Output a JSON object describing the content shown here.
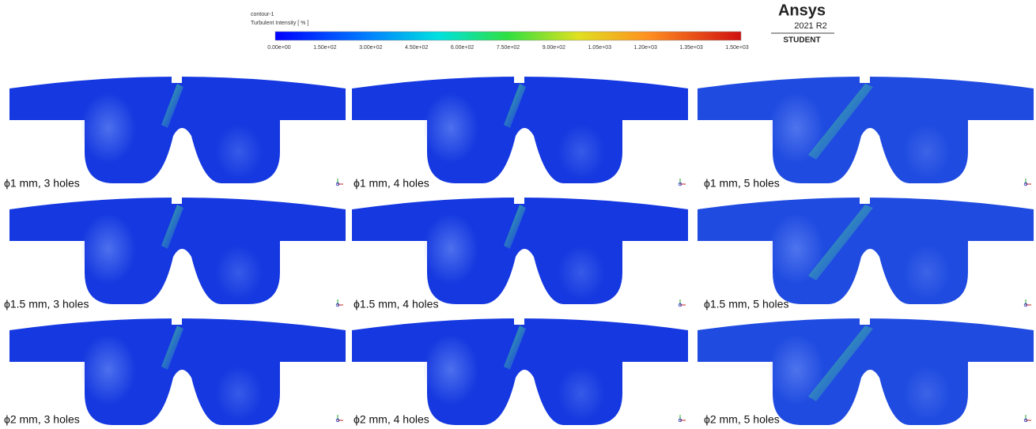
{
  "colorbar": {
    "title": "contour-1",
    "label": "Turbulent Intensity [ % ]",
    "ticks": [
      "0.00e+00",
      "1.50e+02",
      "3.00e+02",
      "4.50e+02",
      "6.00e+02",
      "7.50e+02",
      "9.00e+02",
      "1.05e+03",
      "1.20e+03",
      "1.35e+03",
      "1.50e+03"
    ]
  },
  "logo": {
    "brand": "Ansys",
    "version": "2021 R2",
    "edition": "STUDENT"
  },
  "panels": [
    {
      "label": "ϕ1 mm, 3 holes"
    },
    {
      "label": "ϕ1 mm, 4 holes"
    },
    {
      "label": "ϕ1 mm, 5 holes"
    },
    {
      "label": "ϕ1.5 mm, 3 holes"
    },
    {
      "label": "ϕ1.5 mm, 4 holes"
    },
    {
      "label": "ϕ1.5 mm, 5 holes"
    },
    {
      "label": "ϕ2 mm, 3 holes"
    },
    {
      "label": "ϕ2 mm, 4 holes"
    },
    {
      "label": "ϕ2 mm, 5 holes"
    }
  ]
}
